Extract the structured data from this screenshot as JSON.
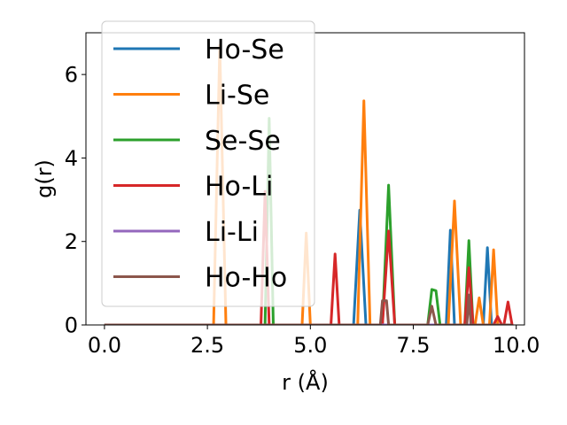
{
  "chart_data": {
    "type": "line",
    "xlabel": "r (Å)",
    "ylabel": "g(r)",
    "xlim": [
      -0.45,
      10.2
    ],
    "ylim": [
      0,
      7.0
    ],
    "x_ticks": [
      0.0,
      2.5,
      5.0,
      7.5,
      10.0
    ],
    "x_tick_labels": [
      "0.0",
      "2.5",
      "5.0",
      "7.5",
      "10.0"
    ],
    "y_ticks": [
      0,
      2,
      4,
      6
    ],
    "y_tick_labels": [
      "0",
      "2",
      "4",
      "6"
    ],
    "legend_position": "top-left",
    "grid": false,
    "series": [
      {
        "name": "Ho-Se",
        "color": "#1f77b4",
        "x": [
          0.0,
          6.05,
          6.2,
          6.35,
          8.3,
          8.4,
          8.5,
          9.2,
          9.3,
          9.4,
          9.9
        ],
        "y": [
          0,
          0,
          2.75,
          0,
          0,
          2.27,
          0,
          0,
          1.85,
          0,
          0
        ]
      },
      {
        "name": "Li-Se",
        "color": "#ff7f0e",
        "x": [
          0.0,
          2.65,
          2.8,
          2.95,
          4.8,
          4.9,
          5.0,
          6.15,
          6.3,
          6.45,
          8.35,
          8.5,
          8.65,
          9.0,
          9.1,
          9.2,
          9.35,
          9.45,
          9.55,
          9.9
        ],
        "y": [
          0,
          0,
          6.7,
          0,
          0,
          2.2,
          0,
          0,
          5.37,
          0,
          0,
          2.97,
          0,
          0,
          0.65,
          0,
          0,
          1.8,
          0,
          0
        ]
      },
      {
        "name": "Se-Se",
        "color": "#2ca02c",
        "x": [
          0.0,
          3.9,
          4.0,
          4.1,
          6.75,
          6.9,
          7.05,
          7.85,
          7.95,
          8.05,
          8.15,
          8.75,
          8.85,
          8.95,
          9.9
        ],
        "y": [
          0,
          0,
          4.95,
          0,
          0,
          3.35,
          0,
          0,
          0.85,
          0.82,
          0,
          0,
          2.02,
          0,
          0
        ]
      },
      {
        "name": "Ho-Li",
        "color": "#d62728",
        "x": [
          0.0,
          3.8,
          3.9,
          4.0,
          5.5,
          5.6,
          5.7,
          6.75,
          6.9,
          7.05,
          8.75,
          8.85,
          8.95,
          9.45,
          9.55,
          9.65,
          9.7,
          9.8,
          9.9
        ],
        "y": [
          0,
          0,
          3.2,
          0,
          0,
          1.7,
          0,
          0,
          2.25,
          0,
          0,
          1.37,
          0,
          0,
          0.2,
          0,
          0,
          0.55,
          0
        ]
      },
      {
        "name": "Li-Li",
        "color": "#9467bd",
        "x": [
          0.0,
          9.9
        ],
        "y": [
          0,
          0
        ]
      },
      {
        "name": "Ho-Ho",
        "color": "#8c564b",
        "x": [
          0.0,
          6.7,
          6.75,
          6.85,
          6.9,
          7.85,
          7.95,
          8.05,
          8.8,
          8.85,
          8.9,
          9.9
        ],
        "y": [
          0,
          0,
          0.58,
          0.58,
          0,
          0,
          0.45,
          0,
          0,
          0.72,
          0,
          0
        ]
      }
    ]
  }
}
